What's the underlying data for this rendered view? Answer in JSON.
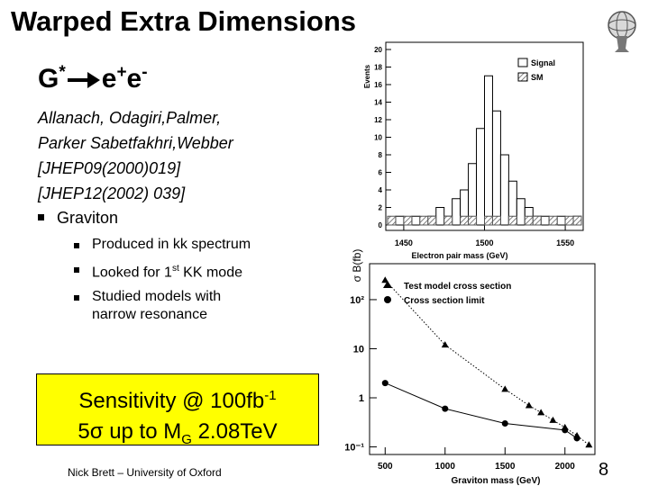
{
  "title": "Warped Extra Dimensions",
  "process": {
    "boson": "G",
    "boson_sup": "*",
    "lepton1": "e",
    "lepton1_sup": "+",
    "lepton2": "e",
    "lepton2_sup": "-"
  },
  "references": [
    "Allanach, Odagiri,Palmer,",
    "Parker Sabetfakhri,Webber",
    "[JHEP09(2000)019]",
    "[JHEP12(2002) 039]"
  ],
  "bullet": "Graviton",
  "sub_bullets": [
    {
      "text": "Produced in kk spectrum"
    },
    {
      "text": "Looked for 1",
      "sup": "st",
      "tail": " KK mode"
    },
    {
      "text": "Studied models with narrow resonance"
    }
  ],
  "sensitivity": {
    "text": "Sensitivity @ 100fb",
    "sup": "-1",
    "line2": "5σ up to M",
    "sub": "G",
    "tail": " 2.08TeV"
  },
  "footer": "Nick Brett – University of Oxford",
  "page_number": 8,
  "chart_data": [
    {
      "type": "histogram",
      "xlabel": "Electron pair mass (GeV)",
      "ylabel": "Events",
      "bins": [
        1440,
        1445,
        1450,
        1455,
        1460,
        1465,
        1470,
        1475,
        1480,
        1485,
        1490,
        1495,
        1500,
        1505,
        1510,
        1515,
        1520,
        1525,
        1530,
        1535,
        1540,
        1545,
        1550,
        1555,
        1560
      ],
      "series": [
        {
          "name": "Signal",
          "color": "#ffffff",
          "values": [
            0,
            1,
            0,
            1,
            0,
            1,
            2,
            1,
            3,
            4,
            7,
            11,
            17,
            13,
            8,
            5,
            3,
            2,
            1,
            1,
            0,
            1,
            0,
            1
          ]
        },
        {
          "name": "SM",
          "color": "#555555",
          "pattern": "hatch",
          "values": [
            1,
            0,
            1,
            0,
            1,
            1,
            0,
            1,
            0,
            1,
            1,
            0,
            1,
            1,
            0,
            1,
            0,
            1,
            1,
            0,
            1,
            0,
            1,
            1
          ]
        }
      ],
      "xlim": [
        1440,
        1560
      ],
      "ylim": [
        0,
        20
      ],
      "xticks": [
        1450,
        1500,
        1550
      ],
      "yticks": [
        0,
        2,
        4,
        6,
        8,
        10,
        12,
        14,
        16,
        18,
        20
      ],
      "legend": "top-right"
    },
    {
      "type": "line",
      "xlabel": "Graviton mass (GeV)",
      "ylabel": "σ B(fb)",
      "log_y": true,
      "series": [
        {
          "name": "Test model cross section",
          "color": "#000000",
          "marker": "triangle",
          "line_style": "dotted",
          "x": [
            500,
            1000,
            1500,
            1700,
            1800,
            1900,
            2000,
            2100,
            2200
          ],
          "values": [
            250,
            12,
            1.5,
            0.7,
            0.5,
            0.35,
            0.25,
            0.17,
            0.11
          ]
        },
        {
          "name": "Cross section limit",
          "color": "#000000",
          "marker": "circle",
          "line_style": "solid",
          "x": [
            500,
            1000,
            1500,
            2000,
            2100
          ],
          "values": [
            2,
            0.6,
            0.3,
            0.22,
            0.15
          ]
        }
      ],
      "xlim": [
        370,
        2250
      ],
      "ylim": [
        0.07,
        540
      ],
      "xticks": [
        500,
        1000,
        1500,
        2000
      ],
      "yticks": [
        {
          "value": 0.1,
          "label": "10⁻¹"
        },
        1,
        10,
        {
          "value": 100,
          "label": "10²"
        }
      ],
      "legend": "top-left"
    }
  ]
}
